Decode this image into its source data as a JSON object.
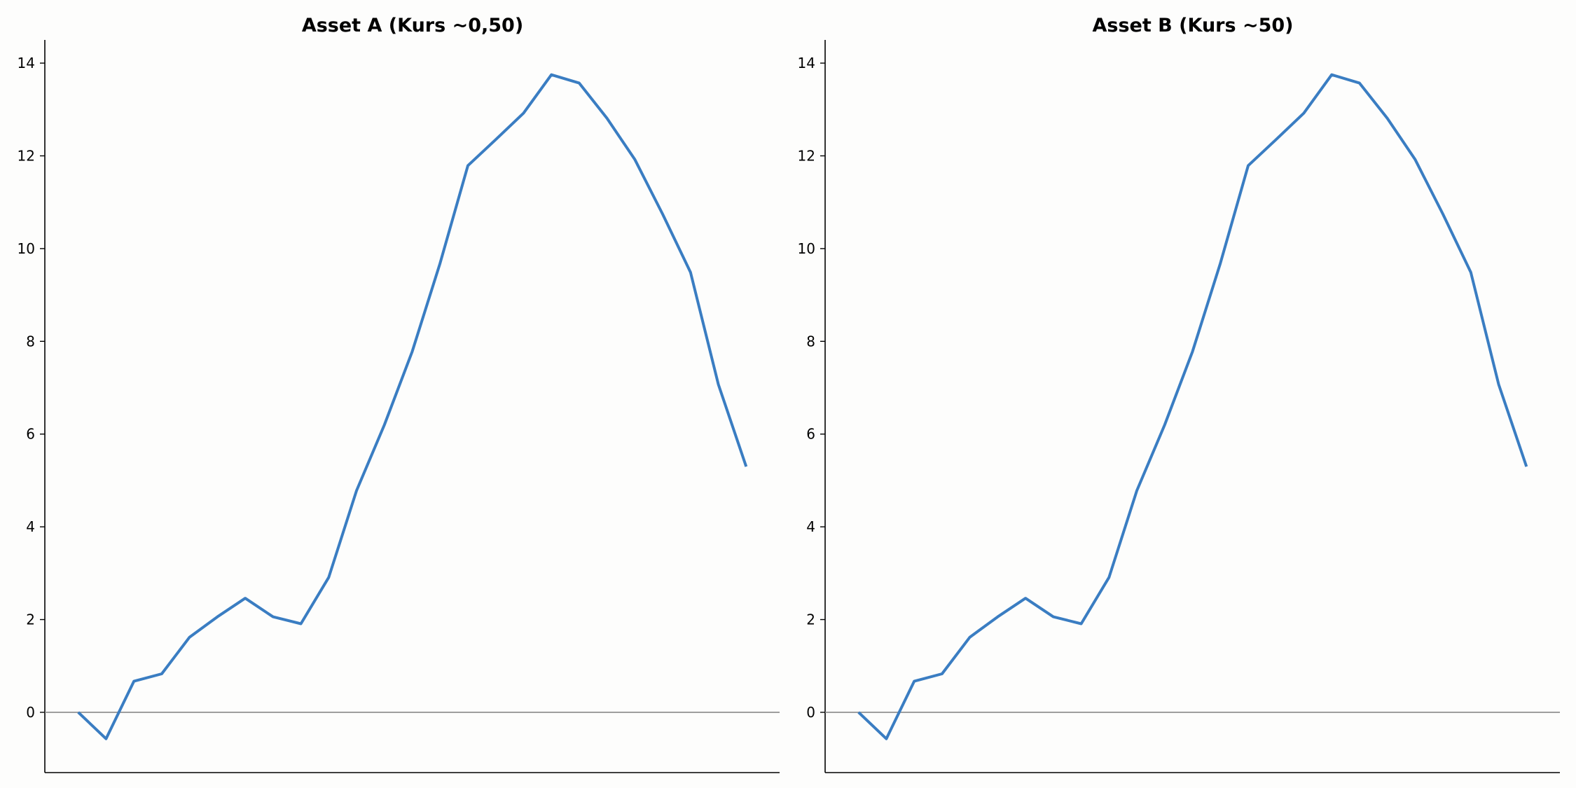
{
  "chart_data": [
    {
      "type": "line",
      "title": "Asset A (Kurs ~0,50)",
      "xlabel": "",
      "ylabel": "",
      "x": [
        0,
        1,
        2,
        3,
        4,
        5,
        6,
        7,
        8,
        9,
        10,
        11,
        12,
        13,
        14,
        15,
        16,
        17,
        18,
        19,
        20,
        21,
        22,
        23,
        24
      ],
      "series": [
        {
          "values": [
            0.0,
            -0.57,
            0.67,
            0.83,
            1.62,
            2.06,
            2.46,
            2.06,
            1.91,
            2.91,
            4.78,
            6.2,
            7.78,
            9.68,
            11.79,
            12.35,
            12.92,
            13.75,
            13.57,
            12.81,
            11.92,
            10.74,
            9.49,
            7.07,
            5.3
          ]
        }
      ],
      "yticks": [
        0,
        2,
        4,
        6,
        8,
        10,
        12,
        14
      ],
      "ylim": [
        -1.3,
        14.5
      ],
      "xlim": [
        -1.2,
        25.2
      ],
      "x_ticks_shown": false,
      "grid": false,
      "reference_line_y": 0,
      "colors": {
        "line": "#3a7dc2",
        "reference_line": "#888888",
        "axis": "#000000"
      }
    },
    {
      "type": "line",
      "title": "Asset B (Kurs ~50)",
      "xlabel": "",
      "ylabel": "",
      "x": [
        0,
        1,
        2,
        3,
        4,
        5,
        6,
        7,
        8,
        9,
        10,
        11,
        12,
        13,
        14,
        15,
        16,
        17,
        18,
        19,
        20,
        21,
        22,
        23,
        24
      ],
      "series": [
        {
          "values": [
            0.0,
            -0.57,
            0.67,
            0.83,
            1.62,
            2.06,
            2.46,
            2.06,
            1.91,
            2.91,
            4.78,
            6.2,
            7.78,
            9.68,
            11.79,
            12.35,
            12.92,
            13.75,
            13.57,
            12.81,
            11.92,
            10.74,
            9.49,
            7.07,
            5.3
          ]
        }
      ],
      "yticks": [
        0,
        2,
        4,
        6,
        8,
        10,
        12,
        14
      ],
      "ylim": [
        -1.3,
        14.5
      ],
      "xlim": [
        -1.2,
        25.2
      ],
      "x_ticks_shown": false,
      "grid": false,
      "reference_line_y": 0,
      "colors": {
        "line": "#3a7dc2",
        "reference_line": "#888888",
        "axis": "#000000"
      }
    }
  ]
}
